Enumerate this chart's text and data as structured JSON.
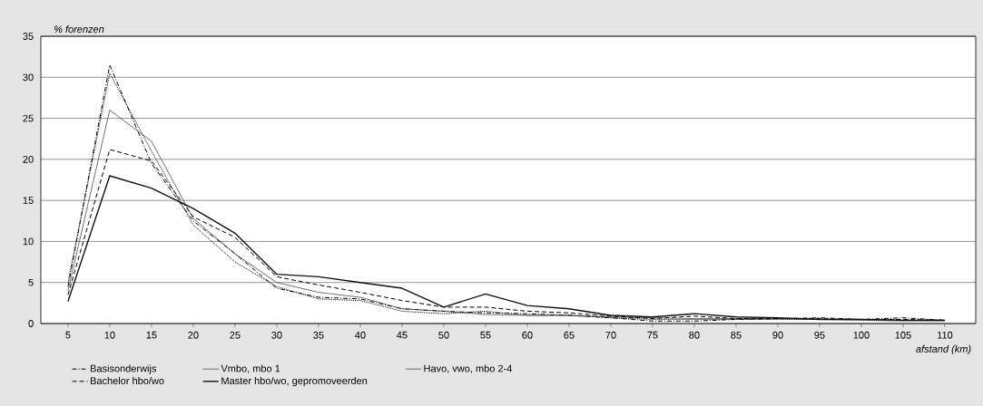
{
  "chart_data": {
    "type": "line",
    "xlabel": "afstand (km)",
    "ylabel": "% forenzen",
    "categories": [
      "5",
      "10",
      "15",
      "20",
      "25",
      "30",
      "35",
      "40",
      "45",
      "50",
      "55",
      "60",
      "65",
      "70",
      "75",
      "80",
      "85",
      "90",
      "95",
      "100",
      "105",
      "110"
    ],
    "ylim": [
      0,
      35
    ],
    "yticks": [
      0,
      5,
      10,
      15,
      20,
      25,
      30,
      35
    ],
    "grid": "y",
    "legend": "bottom",
    "marker": "none",
    "series": [
      {
        "name": "Basisonderwijs",
        "color": "#000000",
        "line_style": "dashdot",
        "values": [
          4.5,
          31.5,
          19.5,
          12.5,
          8.5,
          4.3,
          3.2,
          3.0,
          1.8,
          1.5,
          1.3,
          1.2,
          1.0,
          0.7,
          0.3,
          0.3,
          0.5,
          0.6,
          0.7,
          0.5,
          0.7,
          0.4
        ]
      },
      {
        "name": "Vmbo, mbo 1",
        "color": "#000000",
        "line_style": "dotted",
        "values": [
          5.0,
          30.5,
          21.0,
          12.0,
          7.5,
          4.5,
          3.0,
          2.8,
          1.5,
          1.2,
          1.5,
          1.0,
          1.0,
          0.7,
          0.5,
          0.5,
          0.5,
          0.5,
          0.5,
          0.4,
          0.3,
          0.3
        ]
      },
      {
        "name": "Havo, vwo, mbo 2-4",
        "color": "#333333",
        "line_style": "solid",
        "values": [
          4.0,
          26.0,
          22.2,
          12.8,
          8.5,
          5.0,
          3.8,
          3.2,
          1.8,
          1.5,
          1.1,
          1.0,
          1.0,
          0.8,
          0.7,
          0.6,
          0.6,
          0.6,
          0.5,
          0.5,
          0.4,
          0.4
        ]
      },
      {
        "name": "Bachelor hbo/wo",
        "color": "#000000",
        "line_style": "dashed",
        "values": [
          3.5,
          21.2,
          19.8,
          13.0,
          10.5,
          5.7,
          4.7,
          3.8,
          2.8,
          2.0,
          2.0,
          1.5,
          1.3,
          0.9,
          0.6,
          0.9,
          0.6,
          0.6,
          0.6,
          0.5,
          0.5,
          0.4
        ]
      },
      {
        "name": "Master hbo/wo, gepromoveerden",
        "color": "#111111",
        "line_style": "solid",
        "values": [
          2.7,
          18.0,
          16.5,
          14.0,
          11.0,
          6.0,
          5.7,
          5.0,
          4.3,
          2.0,
          3.6,
          2.2,
          1.8,
          1.0,
          0.8,
          1.2,
          0.8,
          0.7,
          0.5,
          0.5,
          0.4,
          0.4
        ]
      }
    ]
  }
}
